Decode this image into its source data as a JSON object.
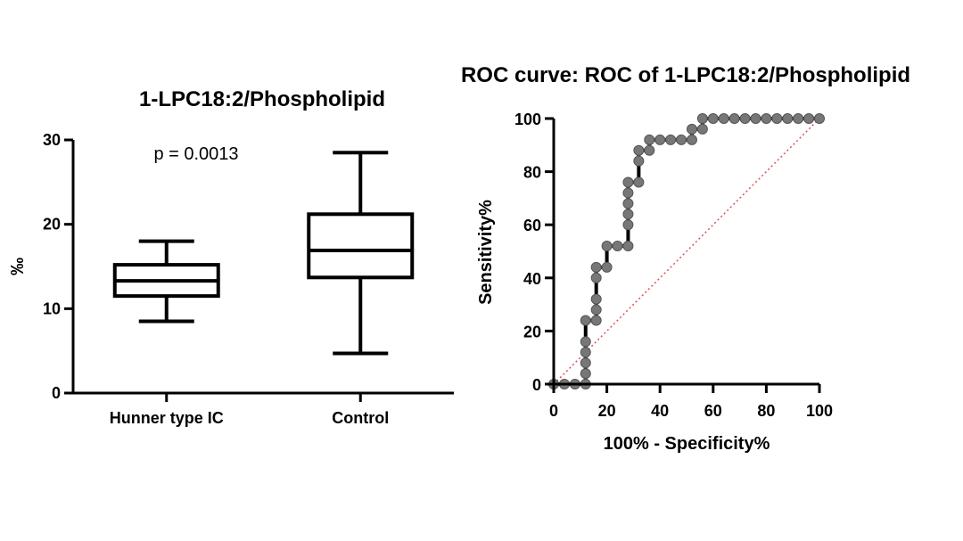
{
  "chart_data": [
    {
      "type": "box",
      "title": "1-LPC18:2/Phospholipid",
      "ylabel": "‰",
      "xlabel": "",
      "ylim": [
        0,
        30
      ],
      "yticks": [
        0,
        10,
        20,
        30
      ],
      "annotation": "p = 0.0013",
      "grid": false,
      "categories": [
        "Hunner type IC",
        "Control"
      ],
      "boxes": [
        {
          "category": "Hunner type IC",
          "min": 8.5,
          "q1": 11.5,
          "median": 13.3,
          "q3": 15.2,
          "max": 18.0
        },
        {
          "category": "Control",
          "min": 4.7,
          "q1": 13.7,
          "median": 16.9,
          "q3": 21.2,
          "max": 28.5
        }
      ]
    },
    {
      "type": "line",
      "title": "ROC curve: ROC of 1-LPC18:2/Phospholipid",
      "xlabel": "100% - Specificity%",
      "ylabel": "Sensitivity%",
      "xlim": [
        0,
        100
      ],
      "ylim": [
        0,
        100
      ],
      "xticks": [
        0,
        20,
        40,
        60,
        80,
        100
      ],
      "yticks": [
        0,
        20,
        40,
        60,
        80,
        100
      ],
      "grid": false,
      "reference_line": {
        "from": [
          0,
          0
        ],
        "to": [
          100,
          100
        ],
        "style": "dotted",
        "color": "#e05050"
      },
      "series": [
        {
          "style": "step",
          "color": "#000000",
          "marker_color": "#777777",
          "x": [
            0,
            4,
            8,
            12,
            12,
            12,
            12,
            12,
            12,
            16,
            16,
            16,
            16,
            16,
            20,
            20,
            24,
            28,
            28,
            28,
            28,
            28,
            28,
            32,
            32,
            32,
            36,
            36,
            40,
            44,
            48,
            52,
            52,
            56,
            56,
            60,
            64,
            68,
            72,
            76,
            80,
            84,
            88,
            92,
            96,
            100
          ],
          "y": [
            0,
            0,
            0,
            0,
            4,
            8,
            12,
            16,
            24,
            24,
            28,
            32,
            40,
            44,
            44,
            52,
            52,
            52,
            60,
            64,
            68,
            72,
            76,
            76,
            84,
            88,
            88,
            92,
            92,
            92,
            92,
            92,
            96,
            96,
            100,
            100,
            100,
            100,
            100,
            100,
            100,
            100,
            100,
            100,
            100,
            100
          ]
        }
      ]
    }
  ]
}
